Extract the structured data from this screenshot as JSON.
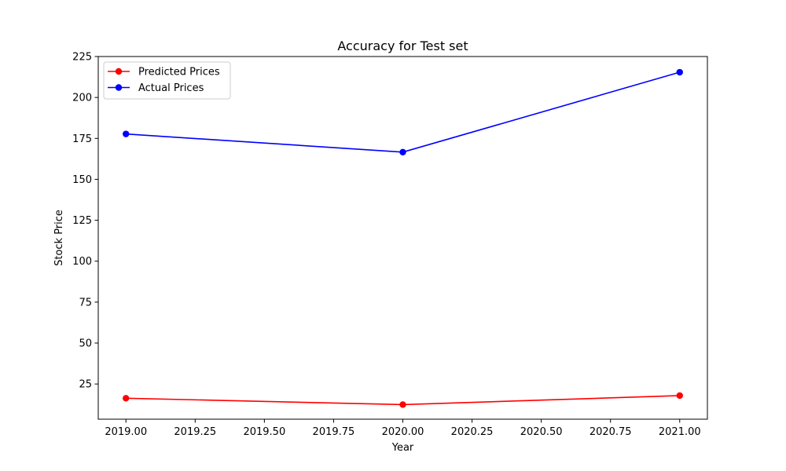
{
  "chart_data": {
    "type": "line",
    "title": "Accuracy for Test set",
    "xlabel": "Year",
    "ylabel": "Stock Price",
    "x": [
      2019.0,
      2020.0,
      2021.0
    ],
    "xlim": [
      2018.9,
      2021.1
    ],
    "ylim": [
      3.5,
      225
    ],
    "xticks": [
      2019.0,
      2019.25,
      2019.5,
      2019.75,
      2020.0,
      2020.25,
      2020.5,
      2020.75,
      2021.0
    ],
    "xtick_labels": [
      "2019.00",
      "2019.25",
      "2019.50",
      "2019.75",
      "2020.00",
      "2020.25",
      "2020.50",
      "2020.75",
      "2021.00"
    ],
    "yticks": [
      25,
      50,
      75,
      100,
      125,
      150,
      175,
      200,
      225
    ],
    "ytick_labels": [
      "25",
      "50",
      "75",
      "100",
      "125",
      "150",
      "175",
      "200",
      "225"
    ],
    "grid": false,
    "legend_position": "top-left",
    "series": [
      {
        "name": "Predicted Prices",
        "color": "#ff0000",
        "values": [
          16.3,
          12.4,
          17.9
        ]
      },
      {
        "name": "Actual Prices",
        "color": "#0000ff",
        "values": [
          177.7,
          166.6,
          215.4
        ]
      }
    ]
  }
}
